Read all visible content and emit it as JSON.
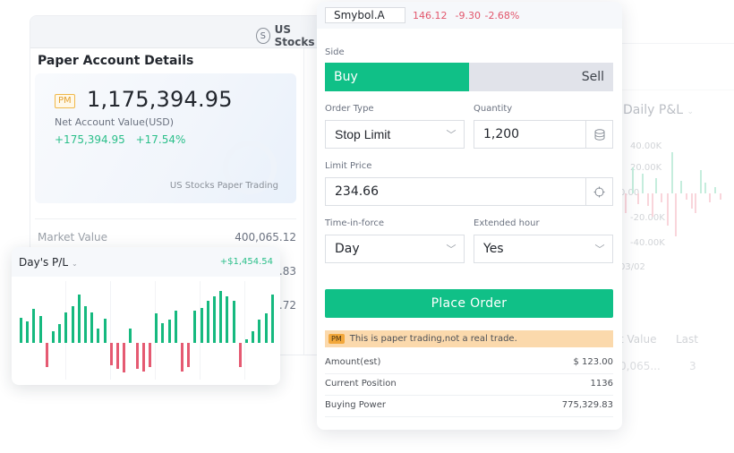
{
  "colors": {
    "accent_green": "#10c087",
    "gain": "#2bbf8a",
    "loss": "#e2566c",
    "warning_bg": "#fbd9ac",
    "pm_tag": "#f2a73a"
  },
  "account_panel": {
    "market_label": "US Stocks",
    "market_icon": "dollar-coin-icon",
    "title": "Paper Account Details",
    "badge": "PM",
    "net_value": "1,175,394.95",
    "net_value_label": "Net Account Value(USD)",
    "change_amount": "+175,394.95",
    "change_percent": "+17.54%",
    "footer": "US Stocks Paper Trading",
    "rows": [
      {
        "label": "Market Value",
        "value": "400,065.12"
      },
      {
        "label": "",
        "value": ".83"
      },
      {
        "label": "",
        "value": ".72"
      }
    ]
  },
  "day_pl": {
    "title": "Day's P/L",
    "caret_icon": "chevron-down-icon",
    "value": "+$1,454.54"
  },
  "order": {
    "symbol": "Smybol.A",
    "price": "146.12",
    "change": "-9.30",
    "change_percent": "-2.68%",
    "side_label": "Side",
    "buy_label": "Buy",
    "sell_label": "Sell",
    "order_type_label": "Order Type",
    "order_type_value": "Stop Limit",
    "quantity_label": "Quantity",
    "quantity_value": "1,200",
    "limit_price_label": "Limit Price",
    "limit_price_value": "234.66",
    "tif_label": "Time-in-force",
    "tif_value": "Day",
    "extended_label": "Extended hour",
    "extended_value": "Yes",
    "place_order_label": "Place Order",
    "warning_badge": "PM",
    "warning_text": "This is paper trading,not a real trade.",
    "info": [
      {
        "label": "Amount(est)",
        "value": "$ 123.00"
      },
      {
        "label": "Current Position",
        "value": "1136"
      },
      {
        "label": "Buying Power",
        "value": "775,329.83"
      }
    ]
  },
  "background_right": {
    "title": "Daily P&L",
    "axis_labels": [
      "40.00K",
      "20.00K",
      "0.00",
      "-20.00K",
      "-40.00K"
    ],
    "date_label": "03/02",
    "table_headers": [
      "t Value",
      "Last"
    ],
    "table_values": [
      "0,065...",
      "3"
    ]
  },
  "chart_data": {
    "type": "bar",
    "title": "Day's P/L",
    "summary_value": "+$1,454.54",
    "xlabel": "",
    "ylabel": "",
    "grid": false,
    "values": [
      28,
      24,
      38,
      30,
      -27,
      13,
      21,
      34,
      41,
      54,
      41,
      34,
      16,
      27,
      -25,
      -29,
      -33,
      16,
      -29,
      -32,
      -27,
      33,
      22,
      26,
      36,
      -32,
      -27,
      36,
      39,
      47,
      52,
      58,
      52,
      47,
      -27,
      4,
      13,
      26,
      33,
      54
    ],
    "note": "Relative bar heights in px; no axis ticks visible"
  }
}
